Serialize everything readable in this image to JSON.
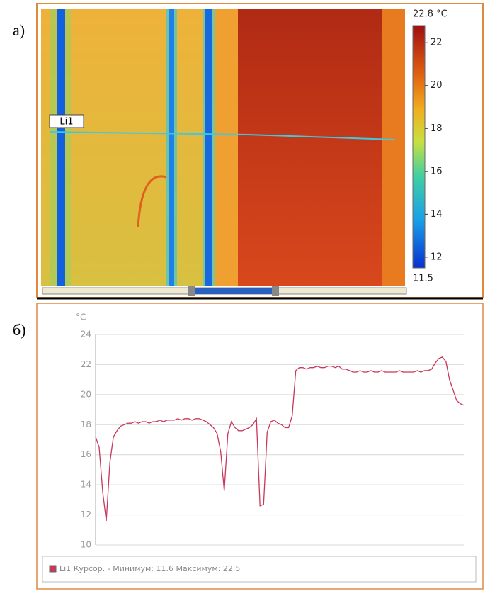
{
  "panel_a": {
    "label": "а)",
    "line_label": "Li1",
    "colorbar": {
      "min": 11.5,
      "max": {
        "value": 22.8,
        "label": "22.8 °C"
      },
      "ticks": [
        12,
        14,
        16,
        18,
        20,
        22
      ]
    }
  },
  "panel_b_label": "б)",
  "chart_data": {
    "type": "line",
    "y_label": "°C",
    "ylim": [
      10,
      24
    ],
    "yticks": [
      10,
      12,
      14,
      16,
      18,
      20,
      22,
      24
    ],
    "grid": true,
    "series": [
      {
        "name": "Li1",
        "color": "#c8385a",
        "legend_text": "Курсор. - Минимум: 11.6 Максимум: 22.5",
        "values": [
          17.2,
          16.5,
          13.5,
          11.6,
          15.5,
          17.2,
          17.6,
          17.9,
          18.0,
          18.1,
          18.1,
          18.2,
          18.1,
          18.2,
          18.2,
          18.1,
          18.2,
          18.2,
          18.3,
          18.2,
          18.3,
          18.3,
          18.3,
          18.4,
          18.3,
          18.4,
          18.4,
          18.3,
          18.4,
          18.4,
          18.3,
          18.2,
          18.0,
          17.8,
          17.4,
          16.2,
          13.6,
          17.4,
          18.2,
          17.8,
          17.6,
          17.6,
          17.7,
          17.8,
          18.0,
          18.4,
          12.6,
          12.7,
          17.5,
          18.2,
          18.3,
          18.1,
          18.0,
          17.8,
          17.8,
          18.6,
          21.6,
          21.8,
          21.8,
          21.7,
          21.8,
          21.8,
          21.9,
          21.8,
          21.8,
          21.9,
          21.9,
          21.8,
          21.9,
          21.7,
          21.7,
          21.6,
          21.5,
          21.5,
          21.6,
          21.5,
          21.5,
          21.6,
          21.5,
          21.5,
          21.6,
          21.5,
          21.5,
          21.5,
          21.5,
          21.6,
          21.5,
          21.5,
          21.5,
          21.5,
          21.6,
          21.5,
          21.6,
          21.6,
          21.7,
          22.1,
          22.4,
          22.5,
          22.2,
          21.0,
          20.3,
          19.6,
          19.4,
          19.3
        ]
      }
    ]
  }
}
